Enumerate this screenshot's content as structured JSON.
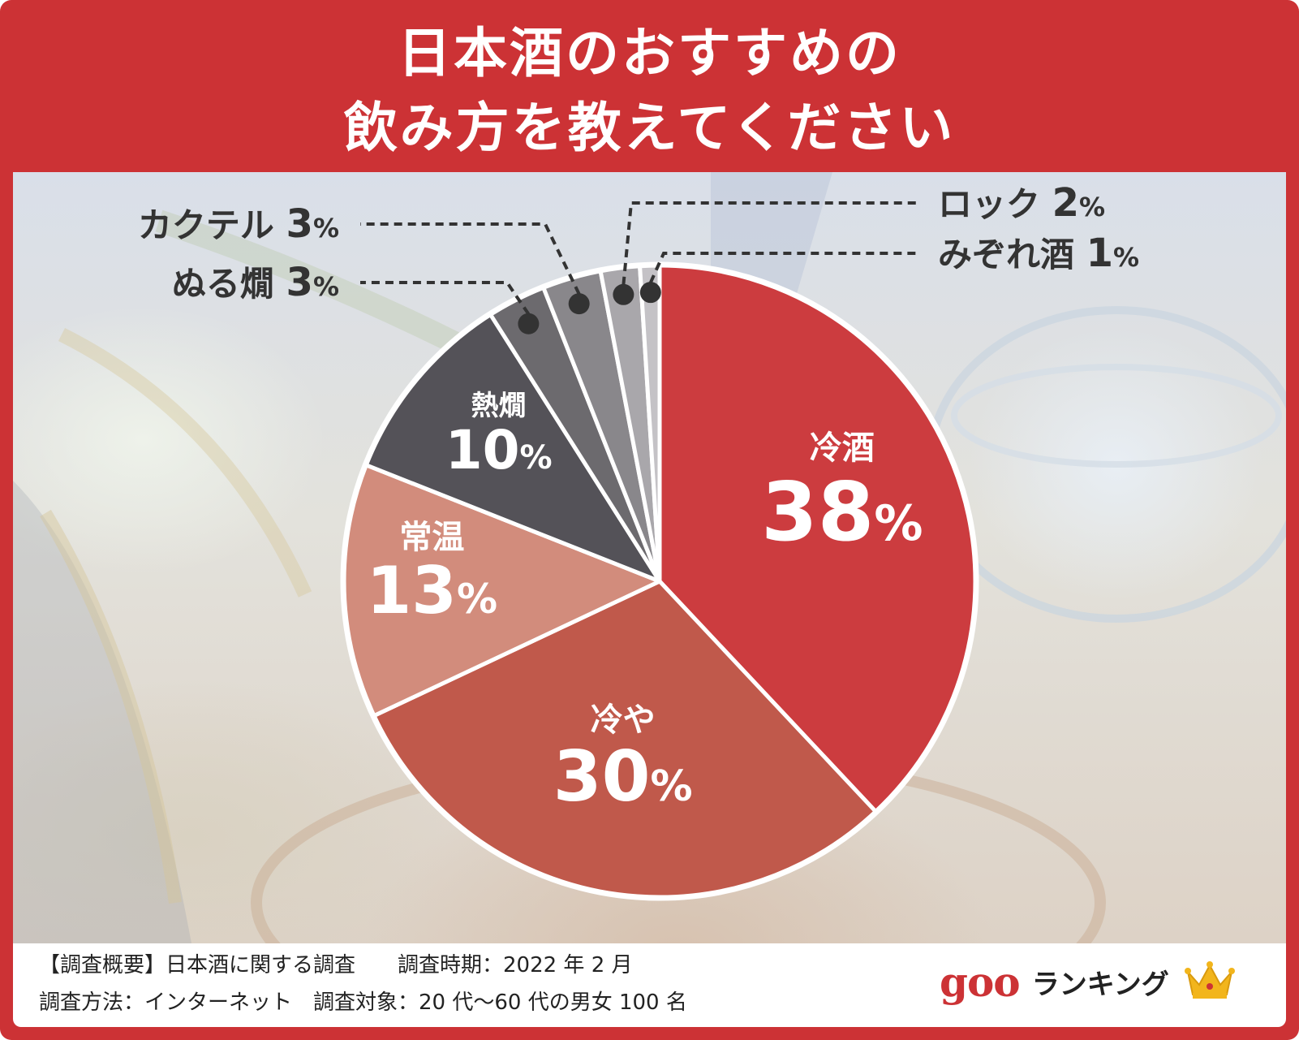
{
  "header": {
    "title_line1": "日本酒のおすすめの",
    "title_line2": "飲み方を教えてください"
  },
  "chart_data": {
    "type": "pie",
    "title": "日本酒のおすすめの飲み方を教えてください",
    "unit": "%",
    "slices": [
      {
        "label": "冷酒",
        "value": 38,
        "color": "#cc3c3f",
        "label_color": "#ffffff"
      },
      {
        "label": "冷や",
        "value": 30,
        "color": "#c0594b",
        "label_color": "#ffffff"
      },
      {
        "label": "常温",
        "value": 13,
        "color": "#d28c7c",
        "label_color": "#ffffff"
      },
      {
        "label": "熱燗",
        "value": 10,
        "color": "#545258",
        "label_color": "#ffffff"
      },
      {
        "label": "ぬる燗",
        "value": 3,
        "color": "#6c6a6e",
        "label_color": "#333333"
      },
      {
        "label": "カクテル",
        "value": 3,
        "color": "#89878b",
        "label_color": "#333333"
      },
      {
        "label": "ロック",
        "value": 2,
        "color": "#a9a7ab",
        "label_color": "#333333"
      },
      {
        "label": "みぞれ酒",
        "value": 1,
        "color": "#c4c2c6",
        "label_color": "#333333"
      }
    ]
  },
  "footer": {
    "note_line1": "【調査概要】日本酒に関する調査　　調査時期：2022 年 2 月",
    "note_line2": "調査方法：インターネット　調査対象：20 代〜60 代の男女 100 名",
    "brand_goo": "goo",
    "brand_ranking": "ランキング",
    "crown_icon": "crown-icon",
    "brand_color": "#cc3235"
  }
}
